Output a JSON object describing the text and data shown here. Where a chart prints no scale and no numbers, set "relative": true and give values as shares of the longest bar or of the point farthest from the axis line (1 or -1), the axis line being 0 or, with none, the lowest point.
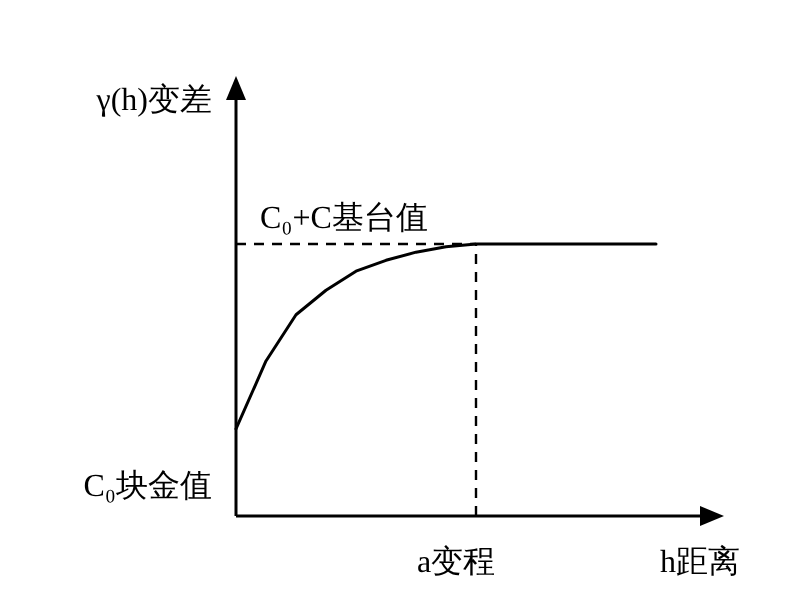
{
  "chart_data": {
    "type": "line",
    "relative": true,
    "ylabel": "γ(h)变差",
    "xlabel": "h距离",
    "categories": [
      null,
      null,
      null,
      null,
      null,
      null,
      null,
      null,
      null,
      null,
      null,
      null,
      null,
      null,
      null
    ],
    "values": [
      0.32,
      0.57,
      0.74,
      0.83,
      0.9,
      0.94,
      0.97,
      0.99,
      1,
      1,
      1,
      1,
      1,
      1,
      1
    ],
    "color": "#000000",
    "line_style": "solid",
    "marker": "none",
    "ref_lines": [
      {
        "axis": "y",
        "value": 1,
        "label": "C₀+C基台值",
        "line_style": "dashed",
        "color": "#000000"
      }
    ],
    "annotations": [
      "C₀块金值",
      "a变程"
    ]
  }
}
